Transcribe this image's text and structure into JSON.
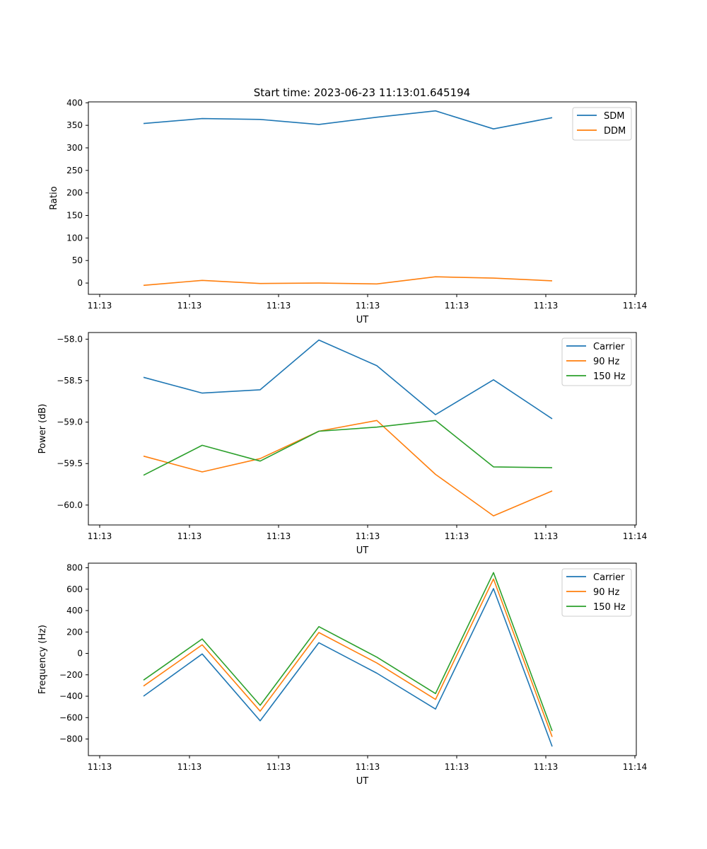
{
  "figure": {
    "title": "Start time: 2023-06-23 11:13:01.645194"
  },
  "colors": {
    "blue": "#1f77b4",
    "orange": "#ff7f0e",
    "green": "#2ca02c",
    "axes": "#000000",
    "legend_border": "#cccccc"
  },
  "chart_data": [
    {
      "type": "line",
      "xlabel": "UT",
      "ylabel": "Ratio",
      "x_tick_labels": [
        "11:13",
        "11:13",
        "11:13",
        "11:13",
        "11:13",
        "11:13",
        "11:14"
      ],
      "ylim": [
        -25,
        402
      ],
      "y_ticks": [
        0,
        50,
        100,
        150,
        200,
        250,
        300,
        350,
        400
      ],
      "legend": "upper right",
      "grid": false,
      "series": [
        {
          "name": "SDM",
          "color": "#1f77b4",
          "values": [
            354,
            365,
            363,
            352,
            368,
            382,
            342,
            367
          ]
        },
        {
          "name": "DDM",
          "color": "#ff7f0e",
          "values": [
            -5,
            6,
            -1,
            0,
            -2,
            14,
            11,
            5
          ]
        }
      ]
    },
    {
      "type": "line",
      "xlabel": "UT",
      "ylabel": "Power (dB)",
      "x_tick_labels": [
        "11:13",
        "11:13",
        "11:13",
        "11:13",
        "11:13",
        "11:13",
        "11:14"
      ],
      "ylim": [
        -60.24,
        -57.92
      ],
      "y_ticks": [
        -60.0,
        -59.5,
        -59.0,
        -58.5,
        -58.0
      ],
      "y_tick_labels": [
        "−60.0",
        "−59.5",
        "−59.0",
        "−58.5",
        "−58.0"
      ],
      "legend": "upper right",
      "grid": false,
      "series": [
        {
          "name": "Carrier",
          "color": "#1f77b4",
          "values": [
            -58.46,
            -58.65,
            -58.61,
            -58.01,
            -58.32,
            -58.91,
            -58.49,
            -58.96
          ]
        },
        {
          "name": "90 Hz",
          "color": "#ff7f0e",
          "values": [
            -59.41,
            -59.6,
            -59.44,
            -59.11,
            -58.98,
            -59.63,
            -60.13,
            -59.83
          ]
        },
        {
          "name": "150 Hz",
          "color": "#2ca02c",
          "values": [
            -59.64,
            -59.28,
            -59.47,
            -59.11,
            -59.06,
            -58.98,
            -59.54,
            -59.55
          ]
        }
      ]
    },
    {
      "type": "line",
      "xlabel": "UT",
      "ylabel": "Frequency (Hz)",
      "x_tick_labels": [
        "11:13",
        "11:13",
        "11:13",
        "11:13",
        "11:13",
        "11:13",
        "11:14"
      ],
      "ylim": [
        -955,
        843
      ],
      "y_ticks": [
        -800,
        -600,
        -400,
        -200,
        0,
        200,
        400,
        600,
        800
      ],
      "y_tick_labels": [
        "−800",
        "−600",
        "−400",
        "−200",
        "0",
        "200",
        "400",
        "600",
        "800"
      ],
      "legend": "upper right",
      "grid": false,
      "series": [
        {
          "name": "Carrier",
          "color": "#1f77b4",
          "values": [
            -400,
            -5,
            -630,
            100,
            -185,
            -520,
            605,
            -870
          ]
        },
        {
          "name": "90 Hz",
          "color": "#ff7f0e",
          "values": [
            -305,
            80,
            -540,
            195,
            -90,
            -430,
            695,
            -780
          ]
        },
        {
          "name": "150 Hz",
          "color": "#2ca02c",
          "values": [
            -250,
            135,
            -485,
            250,
            -35,
            -375,
            755,
            -725
          ]
        }
      ]
    }
  ]
}
